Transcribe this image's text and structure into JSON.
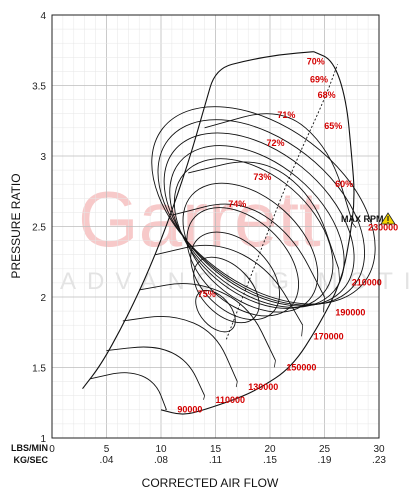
{
  "chart_data": {
    "type": "line",
    "title": "",
    "xlabel": "CORRECTED AIR FLOW",
    "ylabel": "PRESSURE RATIO",
    "x_unit_labels": [
      "LBS/MIN",
      "KG/SEC"
    ],
    "xlim": [
      0,
      30
    ],
    "ylim": [
      1,
      4
    ],
    "x_ticks_lbs": [
      "0",
      "5",
      "10",
      "15",
      "20",
      "25",
      "30"
    ],
    "x_ticks_kg": [
      "",
      ".04",
      ".08",
      ".11",
      ".15",
      ".19",
      ".23"
    ],
    "y_ticks": [
      "1",
      "1.5",
      "2",
      "2.5",
      "3",
      "3.5",
      "4"
    ],
    "grid": true,
    "watermark": {
      "brand": "Garrett",
      "tagline": "ADVANCING MOTION"
    },
    "max_rpm_label": "MAX RPM",
    "surge_line": [
      [
        2.8,
        1.35
      ],
      [
        4.5,
        1.52
      ],
      [
        6.5,
        1.8
      ],
      [
        8.5,
        2.12
      ],
      [
        10.5,
        2.5
      ],
      [
        12.5,
        2.95
      ],
      [
        14,
        3.35
      ],
      [
        15,
        3.62
      ],
      [
        18,
        3.68
      ],
      [
        21,
        3.72
      ],
      [
        24,
        3.74
      ]
    ],
    "choke_line": [
      [
        24,
        3.74
      ],
      [
        25.8,
        3.68
      ],
      [
        27,
        3.4
      ],
      [
        27.5,
        3.0
      ],
      [
        27.8,
        2.7
      ],
      [
        27.3,
        2.4
      ],
      [
        26.5,
        2.1
      ],
      [
        24.5,
        1.8
      ],
      [
        22,
        1.5
      ],
      [
        19,
        1.35
      ],
      [
        17,
        1.28
      ],
      [
        14,
        1.2
      ],
      [
        12,
        1.16
      ],
      [
        10,
        1.2
      ]
    ],
    "speed_lines": [
      {
        "rpm": "90000",
        "points": [
          [
            3.5,
            1.42
          ],
          [
            7,
            1.48
          ],
          [
            9.5,
            1.4
          ],
          [
            10.5,
            1.2
          ]
        ],
        "label_at": [
          11.5,
          1.18
        ]
      },
      {
        "rpm": "110000",
        "points": [
          [
            5,
            1.62
          ],
          [
            9.5,
            1.66
          ],
          [
            12.5,
            1.55
          ],
          [
            14,
            1.3
          ]
        ],
        "label_at": [
          15,
          1.25
        ]
      },
      {
        "rpm": "130000",
        "points": [
          [
            6.5,
            1.83
          ],
          [
            11,
            1.88
          ],
          [
            15,
            1.75
          ],
          [
            17,
            1.4
          ]
        ],
        "label_at": [
          18,
          1.34
        ]
      },
      {
        "rpm": "150000",
        "points": [
          [
            8,
            2.05
          ],
          [
            13,
            2.12
          ],
          [
            18,
            1.95
          ],
          [
            20.5,
            1.55
          ]
        ],
        "label_at": [
          21.5,
          1.48
        ]
      },
      {
        "rpm": "170000",
        "points": [
          [
            9.5,
            2.3
          ],
          [
            15,
            2.4
          ],
          [
            20,
            2.2
          ],
          [
            23,
            1.8
          ]
        ],
        "label_at": [
          24,
          1.7
        ]
      },
      {
        "rpm": "190000",
        "points": [
          [
            11,
            2.58
          ],
          [
            17,
            2.7
          ],
          [
            22,
            2.45
          ],
          [
            25,
            2.0
          ]
        ],
        "label_at": [
          26,
          1.87
        ]
      },
      {
        "rpm": "210000",
        "points": [
          [
            12.5,
            2.88
          ],
          [
            19,
            3.0
          ],
          [
            24,
            2.72
          ],
          [
            26.3,
            2.2
          ]
        ],
        "label_at": [
          27.5,
          2.08
        ]
      },
      {
        "rpm": "230000",
        "points": [
          [
            14,
            3.2
          ],
          [
            21,
            3.35
          ],
          [
            25.5,
            3.05
          ],
          [
            27.6,
            2.52
          ]
        ],
        "label_at": [
          29,
          2.47
        ]
      }
    ],
    "efficiency_islands": [
      {
        "label": "75%",
        "label_at": [
          14.2,
          2.0
        ],
        "center": [
          15,
          1.9
        ],
        "rx": 2.2,
        "ry": 0.28,
        "rot": 42
      },
      {
        "label": "74%",
        "label_at": [
          17,
          2.64
        ],
        "center": [
          16,
          2.05
        ],
        "rx": 3.6,
        "ry": 0.45,
        "rot": 45
      },
      {
        "label": "73%",
        "label_at": [
          19.3,
          2.83
        ],
        "center": [
          16.8,
          2.15
        ],
        "rx": 5.0,
        "ry": 0.6,
        "rot": 46
      },
      {
        "label": "72%",
        "label_at": [
          20.5,
          3.07
        ],
        "center": [
          17.5,
          2.25
        ],
        "rx": 6.2,
        "ry": 0.75,
        "rot": 47
      },
      {
        "label": "71%",
        "label_at": [
          21.5,
          3.27
        ],
        "center": [
          18.2,
          2.35
        ],
        "rx": 7.4,
        "ry": 0.9,
        "rot": 48
      },
      {
        "label": "70%",
        "label_at": [
          24.2,
          3.65
        ],
        "center": [
          18.5,
          2.45
        ],
        "rx": 8.7,
        "ry": 1.05,
        "rot": 49
      },
      {
        "label": "69%",
        "label_at": [
          24.5,
          3.52
        ],
        "center": [
          18.8,
          2.5
        ],
        "rx": 9.4,
        "ry": 1.15,
        "rot": 50
      },
      {
        "label": "68%",
        "label_at": [
          25.2,
          3.41
        ],
        "center": [
          19,
          2.55
        ],
        "rx": 10.0,
        "ry": 1.25,
        "rot": 51
      },
      {
        "label": "65%",
        "label_at": [
          25.8,
          3.19
        ],
        "center": [
          19.2,
          2.6
        ],
        "rx": 10.8,
        "ry": 1.35,
        "rot": 52
      },
      {
        "label": "60%",
        "label_at": [
          26.8,
          2.78
        ],
        "center": [
          19.4,
          2.65
        ],
        "rx": 11.6,
        "ry": 1.45,
        "rot": 53
      }
    ],
    "max_rpm_dotted_line": [
      [
        16,
        1.7
      ],
      [
        19,
        2.3
      ],
      [
        22,
        2.9
      ],
      [
        25,
        3.4
      ],
      [
        26.2,
        3.65
      ]
    ]
  }
}
